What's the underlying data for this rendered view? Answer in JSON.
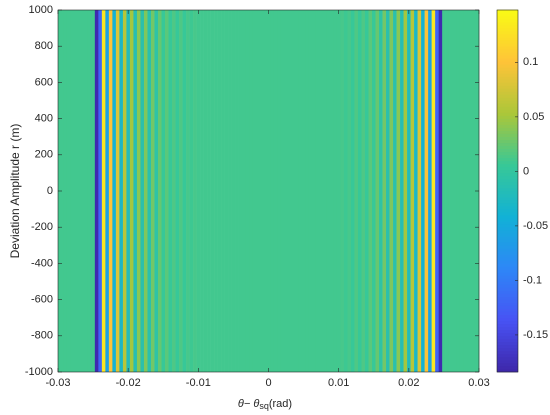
{
  "chart_data": {
    "type": "heatmap",
    "xlabel": [
      "θ− θ",
      "sq",
      "(rad)"
    ],
    "ylabel": "Deviation Amplitude r (m)",
    "x": [
      -0.03,
      -0.0295,
      -0.029,
      -0.0285,
      -0.028,
      -0.0275,
      -0.027,
      -0.0265,
      -0.026,
      -0.0255,
      -0.025,
      -0.0245,
      -0.024,
      -0.0235,
      -0.023,
      -0.0225,
      -0.022,
      -0.0215,
      -0.021,
      -0.0205,
      -0.02,
      -0.0195,
      -0.019,
      -0.0185,
      -0.018,
      -0.0175,
      -0.017,
      -0.0165,
      -0.016,
      -0.0155,
      -0.015,
      -0.0145,
      -0.014,
      -0.0135,
      -0.013,
      -0.0125,
      -0.012,
      -0.0115,
      -0.011,
      -0.0105,
      -0.01,
      -0.0095,
      -0.009,
      -0.0085,
      -0.008,
      -0.0075,
      -0.007,
      -0.0065,
      -0.006,
      -0.0055,
      -0.005,
      -0.0045,
      -0.004,
      -0.0035,
      -0.003,
      -0.0025,
      -0.002,
      -0.0015,
      -0.001,
      -0.0005,
      0,
      0.0005,
      0.001,
      0.0015,
      0.002,
      0.0025,
      0.003,
      0.0035,
      0.004,
      0.0045,
      0.005,
      0.0055,
      0.006,
      0.0065,
      0.007,
      0.0075,
      0.008,
      0.0085,
      0.009,
      0.0095,
      0.01,
      0.0105,
      0.011,
      0.0115,
      0.012,
      0.0125,
      0.013,
      0.0135,
      0.014,
      0.0145,
      0.015,
      0.0155,
      0.016,
      0.0165,
      0.017,
      0.0175,
      0.018,
      0.0185,
      0.019,
      0.0195,
      0.02,
      0.0205,
      0.021,
      0.0215,
      0.022,
      0.0225,
      0.023,
      0.0235,
      0.024,
      0.0245,
      0.025,
      0.0255,
      0.026,
      0.0265,
      0.027,
      0.0275,
      0.028,
      0.0285,
      0.029,
      0.0295,
      0.03
    ],
    "values": [
      0.01,
      0.01,
      0.01,
      0.01,
      0.01,
      0.01,
      0.01,
      0.01,
      0.01,
      0.01,
      0.01,
      -0.18,
      -0.12,
      0.13,
      -0.06,
      0.1,
      -0.04,
      0.08,
      -0.03,
      0.06,
      -0.02,
      0.05,
      -0.015,
      0.04,
      -0.01,
      0.035,
      -0.01,
      0.03,
      -0.005,
      0.025,
      0.005,
      0.02,
      0.005,
      0.015,
      0.005,
      0.015,
      0.005,
      0.012,
      0.008,
      0.012,
      0.01,
      0.01,
      0.01,
      0.01,
      0.01,
      0.01,
      0.01,
      0.01,
      0.01,
      0.01,
      0.01,
      0.01,
      0.01,
      0.01,
      0.01,
      0.01,
      0.01,
      0.01,
      0.01,
      0.01,
      0.01,
      0.01,
      0.01,
      0.01,
      0.01,
      0.01,
      0.01,
      0.01,
      0.01,
      0.01,
      0.01,
      0.01,
      0.01,
      0.01,
      0.01,
      0.01,
      0.01,
      0.01,
      0.01,
      0.01,
      0.01,
      0.012,
      0.008,
      0.012,
      0.005,
      0.015,
      0.005,
      0.015,
      0.005,
      0.02,
      0.005,
      0.025,
      -0.005,
      0.03,
      -0.01,
      0.035,
      -0.01,
      0.04,
      -0.015,
      0.05,
      -0.02,
      0.06,
      -0.03,
      0.08,
      -0.04,
      0.1,
      -0.06,
      0.13,
      -0.12,
      -0.18,
      0.01,
      0.01,
      0.01,
      0.01,
      0.01,
      0.01,
      0.01,
      0.01,
      0.01,
      0.01,
      0.01
    ],
    "xlim": [
      -0.03,
      0.03
    ],
    "xticks": [
      -0.03,
      -0.02,
      -0.01,
      0,
      0.01,
      0.02,
      0.03
    ],
    "ylim": [
      -1000,
      1000
    ],
    "yticks": [
      -1000,
      -800,
      -600,
      -400,
      -200,
      0,
      200,
      400,
      600,
      800,
      1000
    ],
    "colormap": "parula",
    "clim": [
      -0.184,
      0.148
    ],
    "cticks": [
      -0.15,
      -0.1,
      -0.05,
      0,
      0.05,
      0.1
    ]
  }
}
